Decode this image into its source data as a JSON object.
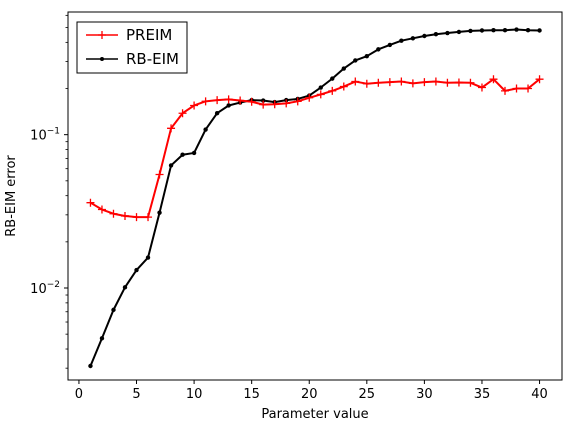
{
  "chart_data": {
    "type": "line",
    "xlabel": "Parameter value",
    "ylabel": "RB-EIM error",
    "yscale": "log",
    "xlim": [
      -0.95,
      41.95
    ],
    "ylim_log10": [
      -2.6,
      -0.2
    ],
    "x_ticks": [
      0,
      5,
      10,
      15,
      20,
      25,
      30,
      35,
      40
    ],
    "y_ticks": [
      {
        "value": 0.01,
        "label_base": "10",
        "label_exp": "−2"
      },
      {
        "value": 0.1,
        "label_base": "10",
        "label_exp": "−1"
      }
    ],
    "legend_position": "top-left",
    "x": [
      1,
      2,
      3,
      4,
      5,
      6,
      7,
      8,
      9,
      10,
      11,
      12,
      13,
      14,
      15,
      16,
      17,
      18,
      19,
      20,
      21,
      22,
      23,
      24,
      25,
      26,
      27,
      28,
      29,
      30,
      31,
      32,
      33,
      34,
      35,
      36,
      37,
      38,
      39,
      40
    ],
    "series": [
      {
        "name": "PREIM",
        "color": "#ff0000",
        "marker": "plus",
        "values": [
          0.036,
          0.0325,
          0.0305,
          0.0295,
          0.029,
          0.029,
          0.055,
          0.11,
          0.138,
          0.155,
          0.165,
          0.168,
          0.17,
          0.167,
          0.164,
          0.157,
          0.158,
          0.16,
          0.165,
          0.174,
          0.183,
          0.193,
          0.206,
          0.222,
          0.215,
          0.218,
          0.22,
          0.222,
          0.216,
          0.22,
          0.222,
          0.218,
          0.219,
          0.218,
          0.203,
          0.23,
          0.193,
          0.2,
          0.2,
          0.23
        ]
      },
      {
        "name": "RB-EIM",
        "color": "#000000",
        "marker": "dot",
        "values": [
          0.0031,
          0.0047,
          0.0072,
          0.0101,
          0.0131,
          0.0158,
          0.031,
          0.063,
          0.074,
          0.076,
          0.108,
          0.138,
          0.155,
          0.162,
          0.168,
          0.167,
          0.163,
          0.168,
          0.171,
          0.18,
          0.203,
          0.232,
          0.27,
          0.305,
          0.325,
          0.36,
          0.385,
          0.41,
          0.425,
          0.44,
          0.452,
          0.46,
          0.468,
          0.475,
          0.478,
          0.48,
          0.48,
          0.485,
          0.48,
          0.478
        ]
      }
    ]
  }
}
